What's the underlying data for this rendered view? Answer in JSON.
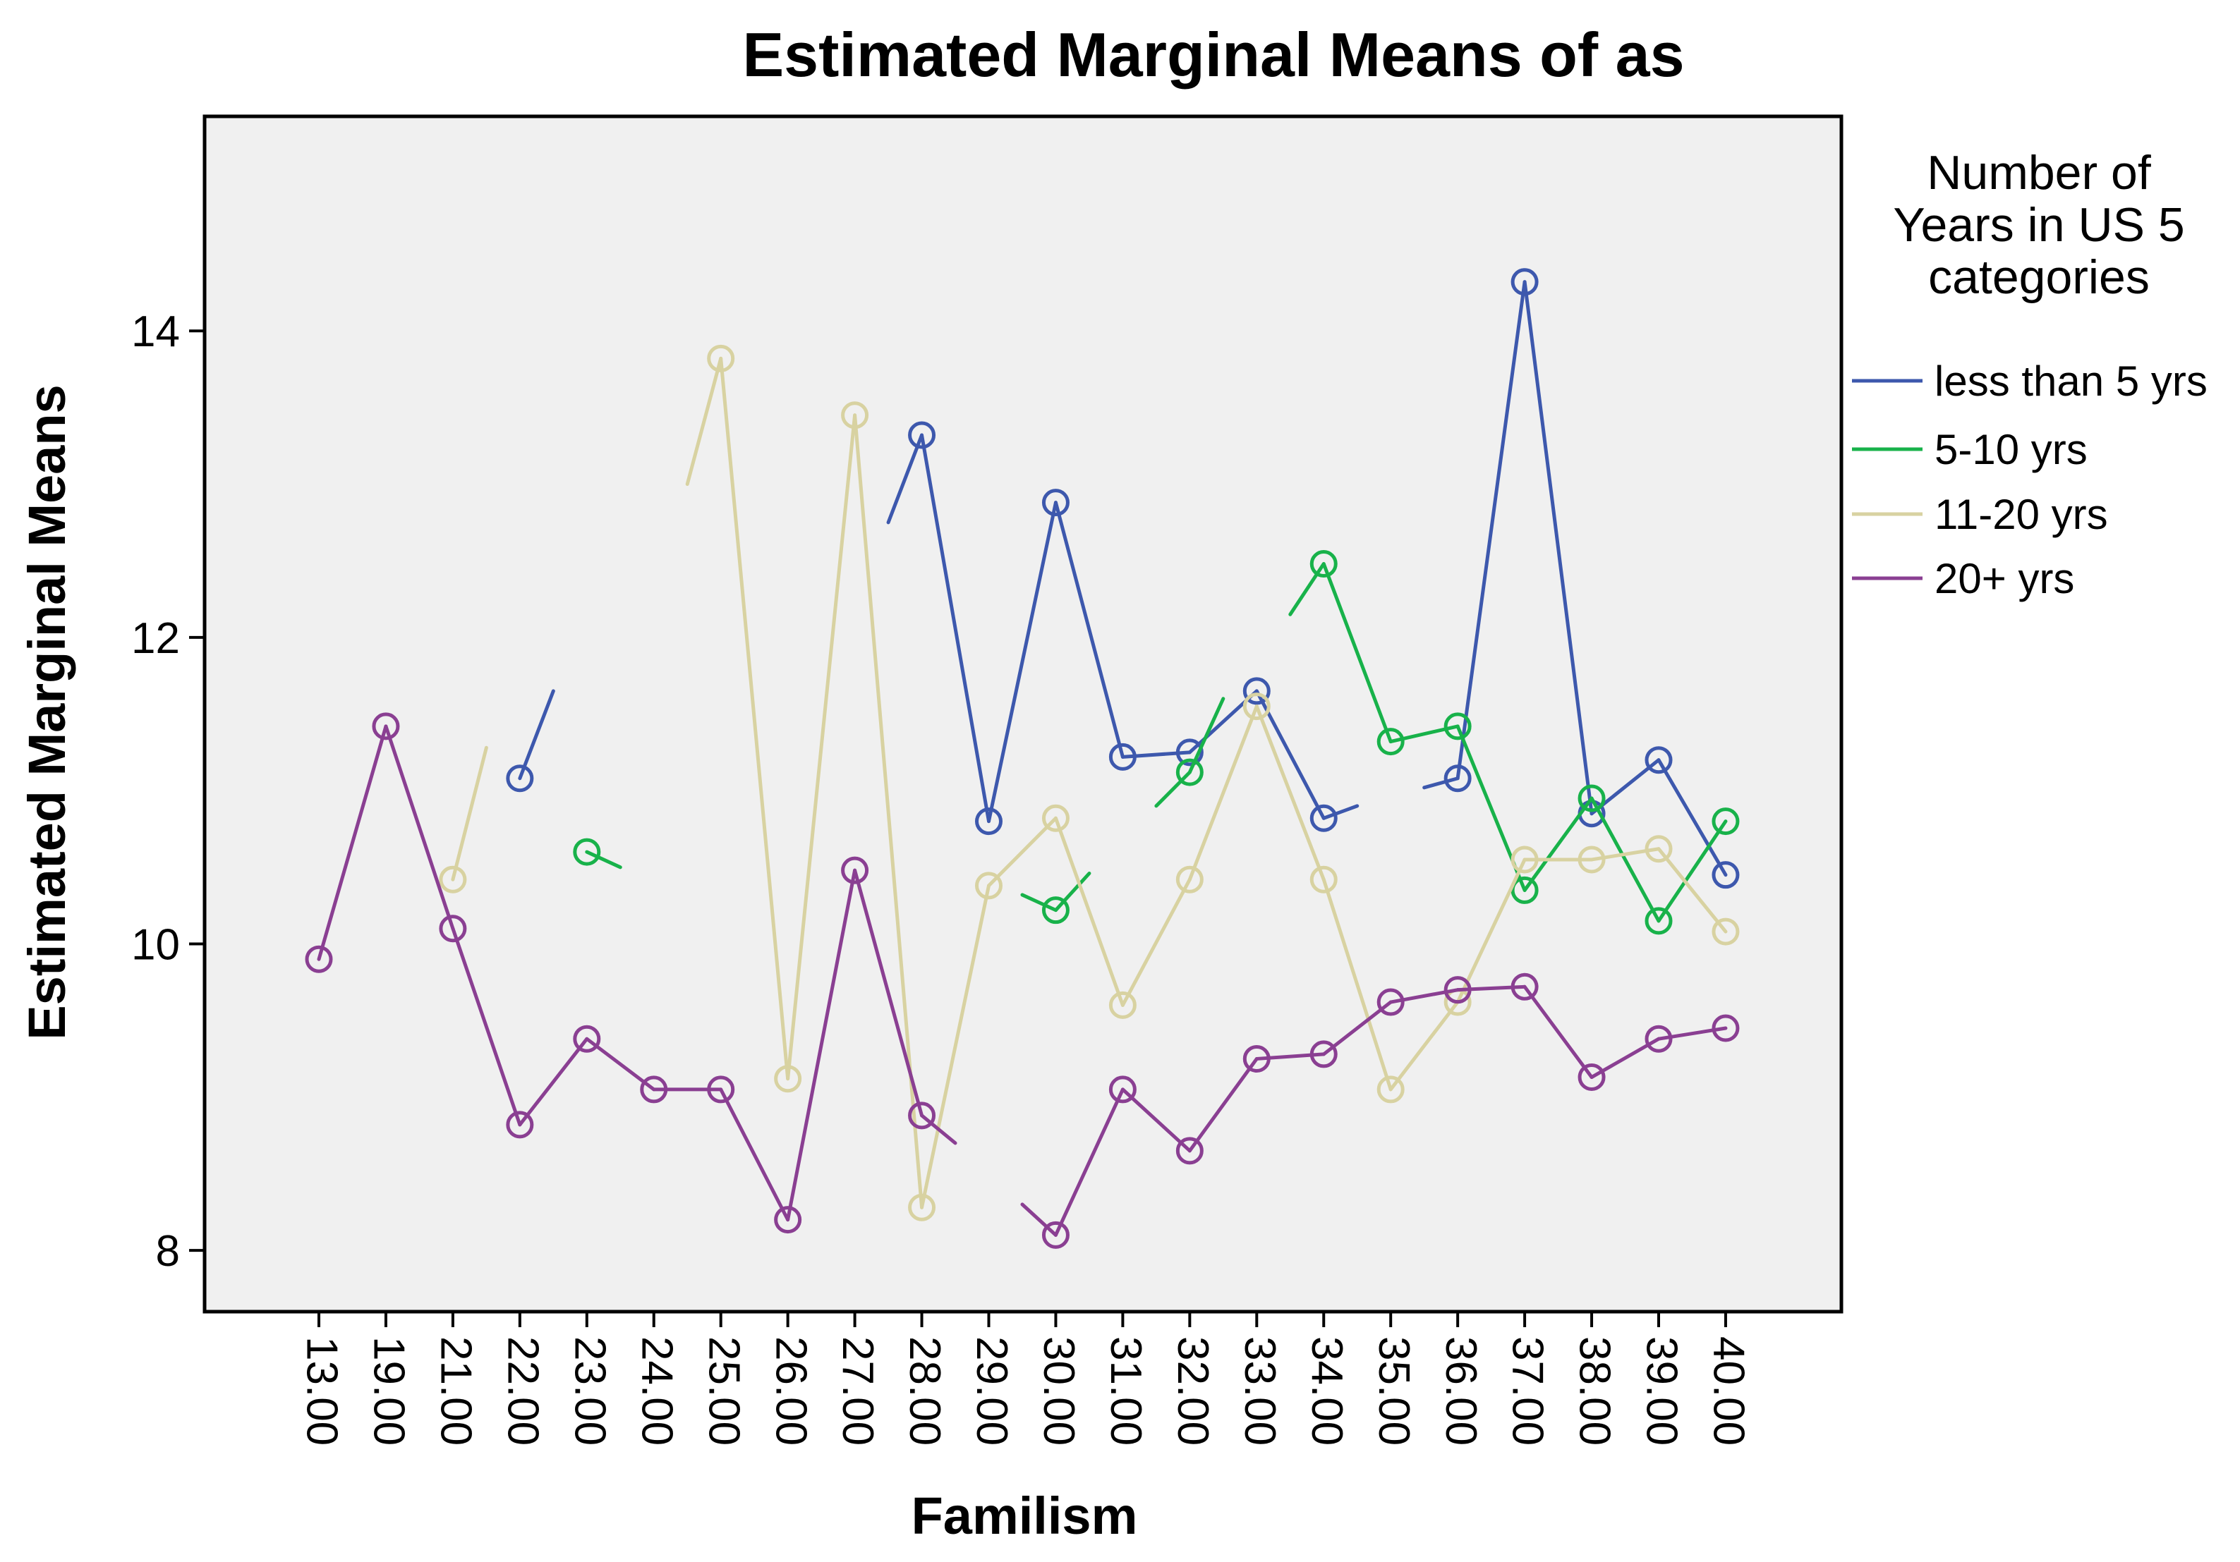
{
  "chart_data": {
    "type": "line",
    "title": "Estimated Marginal Means of as",
    "xlabel": "Familism",
    "ylabel": "Estimated Marginal Means",
    "categories": [
      "13.00",
      "19.00",
      "21.00",
      "22.00",
      "23.00",
      "24.00",
      "25.00",
      "26.00",
      "27.00",
      "28.00",
      "29.00",
      "30.00",
      "31.00",
      "32.00",
      "33.00",
      "34.00",
      "35.00",
      "36.00",
      "37.00",
      "38.00",
      "39.00",
      "40.00"
    ],
    "yticks": [
      8,
      10,
      12,
      14
    ],
    "ylim": [
      7.6,
      15.4
    ],
    "grid": false,
    "plot_background": "#f0f0f0",
    "legend": {
      "title": "Number of Years in US 5 categories",
      "title_lines": [
        "Number of",
        "Years in US 5",
        "categories"
      ],
      "position": "right"
    },
    "series": [
      {
        "name": "less than 5 yrs",
        "color": "#3d58ad",
        "values": [
          null,
          null,
          null,
          11.08,
          null,
          null,
          null,
          null,
          null,
          13.32,
          10.8,
          12.88,
          11.22,
          11.25,
          11.65,
          10.82,
          null,
          11.08,
          14.32,
          10.85,
          11.2,
          10.45
        ],
        "stubs": [
          [
            3,
            4,
            11.65
          ],
          [
            9,
            8,
            12.75
          ],
          [
            15,
            16,
            10.9
          ],
          [
            17,
            16,
            11.02
          ]
        ]
      },
      {
        "name": "5-10 yrs",
        "color": "#18b24a",
        "values": [
          null,
          null,
          null,
          null,
          10.6,
          null,
          null,
          null,
          null,
          null,
          null,
          10.22,
          null,
          11.12,
          null,
          12.48,
          11.32,
          11.42,
          10.35,
          10.95,
          10.15,
          10.8
        ],
        "stubs": [
          [
            4,
            5,
            10.5
          ],
          [
            11,
            10,
            10.32
          ],
          [
            11,
            12,
            10.46
          ],
          [
            13,
            12,
            10.9
          ],
          [
            13,
            14,
            11.6
          ],
          [
            15,
            14,
            12.15
          ]
        ]
      },
      {
        "name": "11-20 yrs",
        "color": "#d8d2a1",
        "values": [
          null,
          null,
          10.42,
          null,
          null,
          null,
          13.82,
          9.12,
          13.45,
          8.28,
          10.38,
          10.82,
          9.6,
          10.42,
          11.55,
          10.42,
          9.05,
          9.62,
          10.55,
          10.55,
          10.62,
          10.08
        ],
        "stubs": [
          [
            2,
            3,
            11.28
          ],
          [
            6,
            5,
            13.0
          ]
        ]
      },
      {
        "name": "20+ yrs",
        "color": "#8a3f92",
        "values": [
          9.9,
          11.42,
          10.1,
          8.82,
          9.38,
          9.05,
          9.05,
          8.2,
          10.48,
          8.88,
          null,
          8.1,
          9.05,
          8.65,
          9.25,
          9.28,
          9.62,
          9.7,
          9.72,
          9.13,
          9.38,
          9.45
        ],
        "stubs": [
          [
            9,
            10,
            8.7
          ],
          [
            11,
            10,
            8.3
          ]
        ]
      }
    ]
  }
}
